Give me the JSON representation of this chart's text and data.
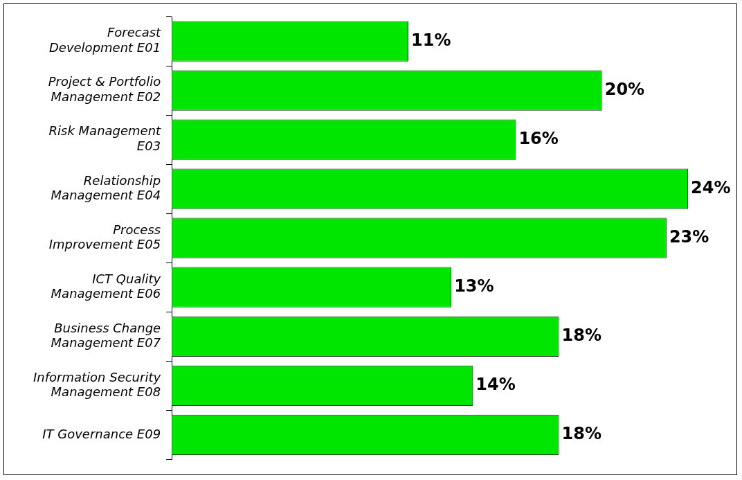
{
  "chart_data": {
    "type": "bar",
    "orientation": "horizontal",
    "categories": [
      "Forecast Development E01",
      "Project & Portfolio Management E02",
      "Risk Management E03",
      "Relationship Management E04",
      "Process Improvement E05",
      "ICT Quality Management E06",
      "Business Change Management E07",
      "Information Security Management E08",
      "IT Governance E09"
    ],
    "values": [
      11,
      20,
      16,
      24,
      23,
      13,
      18,
      14,
      18
    ],
    "value_labels": [
      "11%",
      "20%",
      "16%",
      "24%",
      "23%",
      "13%",
      "18%",
      "14%",
      "18%"
    ],
    "color": "#00e600"
  }
}
